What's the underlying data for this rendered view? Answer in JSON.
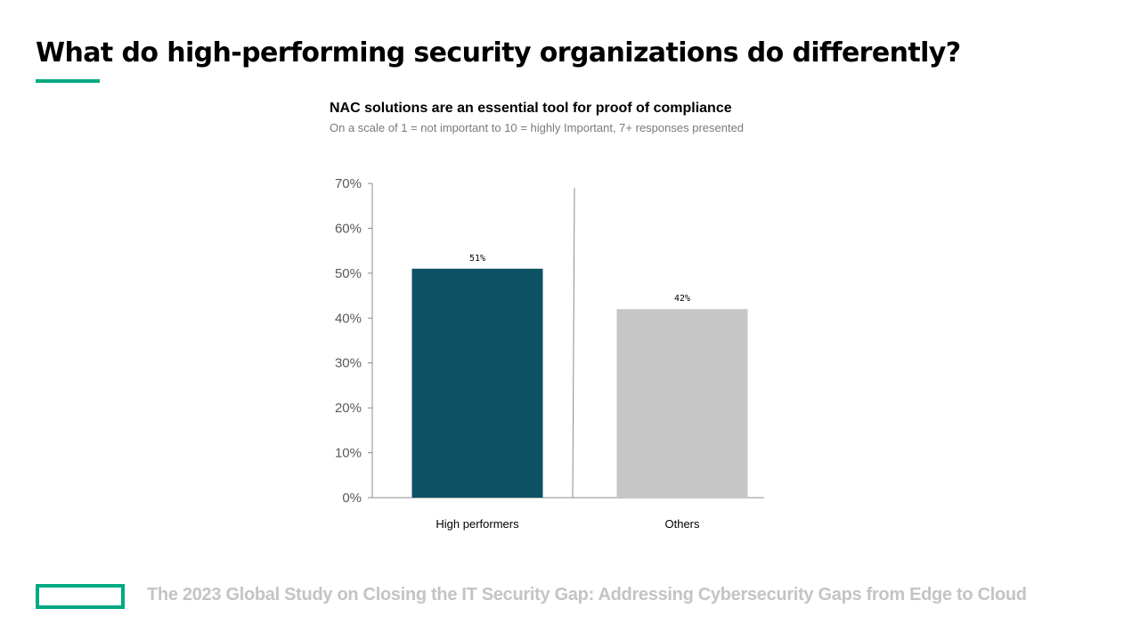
{
  "page": {
    "title": "What do high-performing security organizations do differently?",
    "footer": "The 2023 Global Study on Closing the IT Security Gap: Addressing Cybersecurity Gaps from Edge to Cloud"
  },
  "colors": {
    "accent": "#01a982",
    "high_performers_bar": "#0e5265",
    "others_bar": "#c6c6c6",
    "footer_text": "#c4c4c4"
  },
  "icons": {
    "footer_logo": "hpe-element-logo-icon"
  },
  "chart_data": {
    "type": "bar",
    "title": "NAC solutions are an essential tool for proof of compliance",
    "subtitle": "On a scale of 1 = not important to 10 = highly Important, 7+ responses presented",
    "categories": [
      "High performers",
      "Others"
    ],
    "values": [
      51,
      42
    ],
    "data_labels": [
      "51%",
      "42%"
    ],
    "bar_colors": [
      "#0e5265",
      "#c6c6c6"
    ],
    "ylim": [
      0,
      70
    ],
    "yticks": [
      0,
      10,
      20,
      30,
      40,
      50,
      60,
      70
    ],
    "ytick_labels": [
      "0%",
      "10%",
      "20%",
      "30%",
      "40%",
      "50%",
      "60%",
      "70%"
    ],
    "xlabel": "",
    "ylabel": "",
    "grid": false,
    "separator_between_categories": true
  }
}
